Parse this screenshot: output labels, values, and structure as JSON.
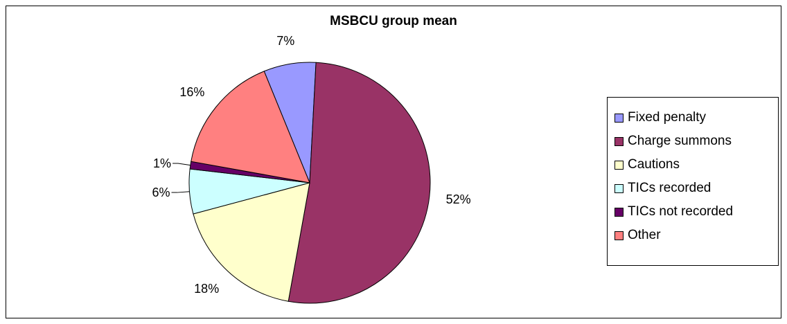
{
  "chart_data": {
    "type": "pie",
    "title": "MSBCU group mean",
    "legend_position": "right",
    "slices": [
      {
        "label": "Fixed penalty",
        "value": 7,
        "display": "7%",
        "color": "#9999FF"
      },
      {
        "label": "Charge summons",
        "value": 52,
        "display": "52%",
        "color": "#993366"
      },
      {
        "label": "Cautions",
        "value": 18,
        "display": "18%",
        "color": "#FFFFCC"
      },
      {
        "label": "TICs recorded",
        "value": 6,
        "display": "6%",
        "color": "#CCFFFF"
      },
      {
        "label": "TICs not recorded",
        "value": 1,
        "display": "1%",
        "color": "#660066"
      },
      {
        "label": "Other",
        "value": 16,
        "display": "16%",
        "color": "#FF8080"
      }
    ]
  }
}
